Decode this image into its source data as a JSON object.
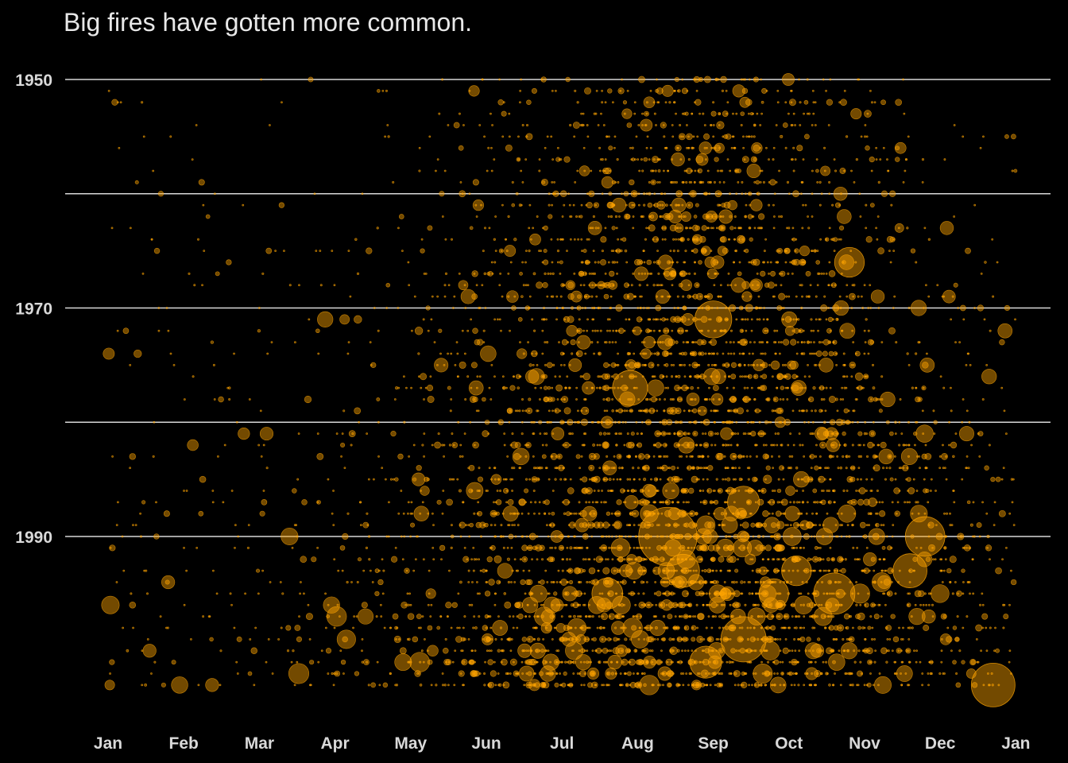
{
  "chart_data": {
    "type": "scatter",
    "title": "Big fires have gotten more common.",
    "xlabel": "",
    "ylabel": "",
    "x_ticks": [
      "Jan",
      "Feb",
      "Mar",
      "Apr",
      "May",
      "Jun",
      "Jul",
      "Aug",
      "Sep",
      "Oct",
      "Nov",
      "Dec",
      "Jan"
    ],
    "y_ticks": [
      "1950",
      "1970",
      "1990"
    ],
    "ylim": [
      1950,
      2004
    ],
    "y_reversed": true,
    "grid": "horizontal",
    "legend": "none",
    "point_color": "#ffa500",
    "point_opacity": 0.45,
    "encoding": {
      "x": "month",
      "y": "year",
      "size": "acres_burned"
    },
    "highlighted_fires": [
      {
        "month": 7.4,
        "year": 1990,
        "acres": 500000
      },
      {
        "month": 8.4,
        "year": 1999,
        "acres": 300000
      },
      {
        "month": 11.7,
        "year": 2003,
        "acres": 280000
      },
      {
        "month": 9.6,
        "year": 1995,
        "acres": 250000
      },
      {
        "month": 10.8,
        "year": 1990,
        "acres": 230000
      },
      {
        "month": 8.0,
        "year": 1971,
        "acres": 200000
      },
      {
        "month": 6.9,
        "year": 1977,
        "acres": 180000
      },
      {
        "month": 10.6,
        "year": 1993,
        "acres": 170000
      },
      {
        "month": 7.6,
        "year": 1993,
        "acres": 160000
      },
      {
        "month": 7.9,
        "year": 2001,
        "acres": 150000
      },
      {
        "month": 8.4,
        "year": 1987,
        "acres": 150000
      },
      {
        "month": 6.6,
        "year": 1995,
        "acres": 140000
      },
      {
        "month": 9.1,
        "year": 1993,
        "acres": 130000
      },
      {
        "month": 8.8,
        "year": 1995,
        "acres": 130000
      },
      {
        "month": 9.8,
        "year": 1966,
        "acres": 130000
      }
    ]
  }
}
